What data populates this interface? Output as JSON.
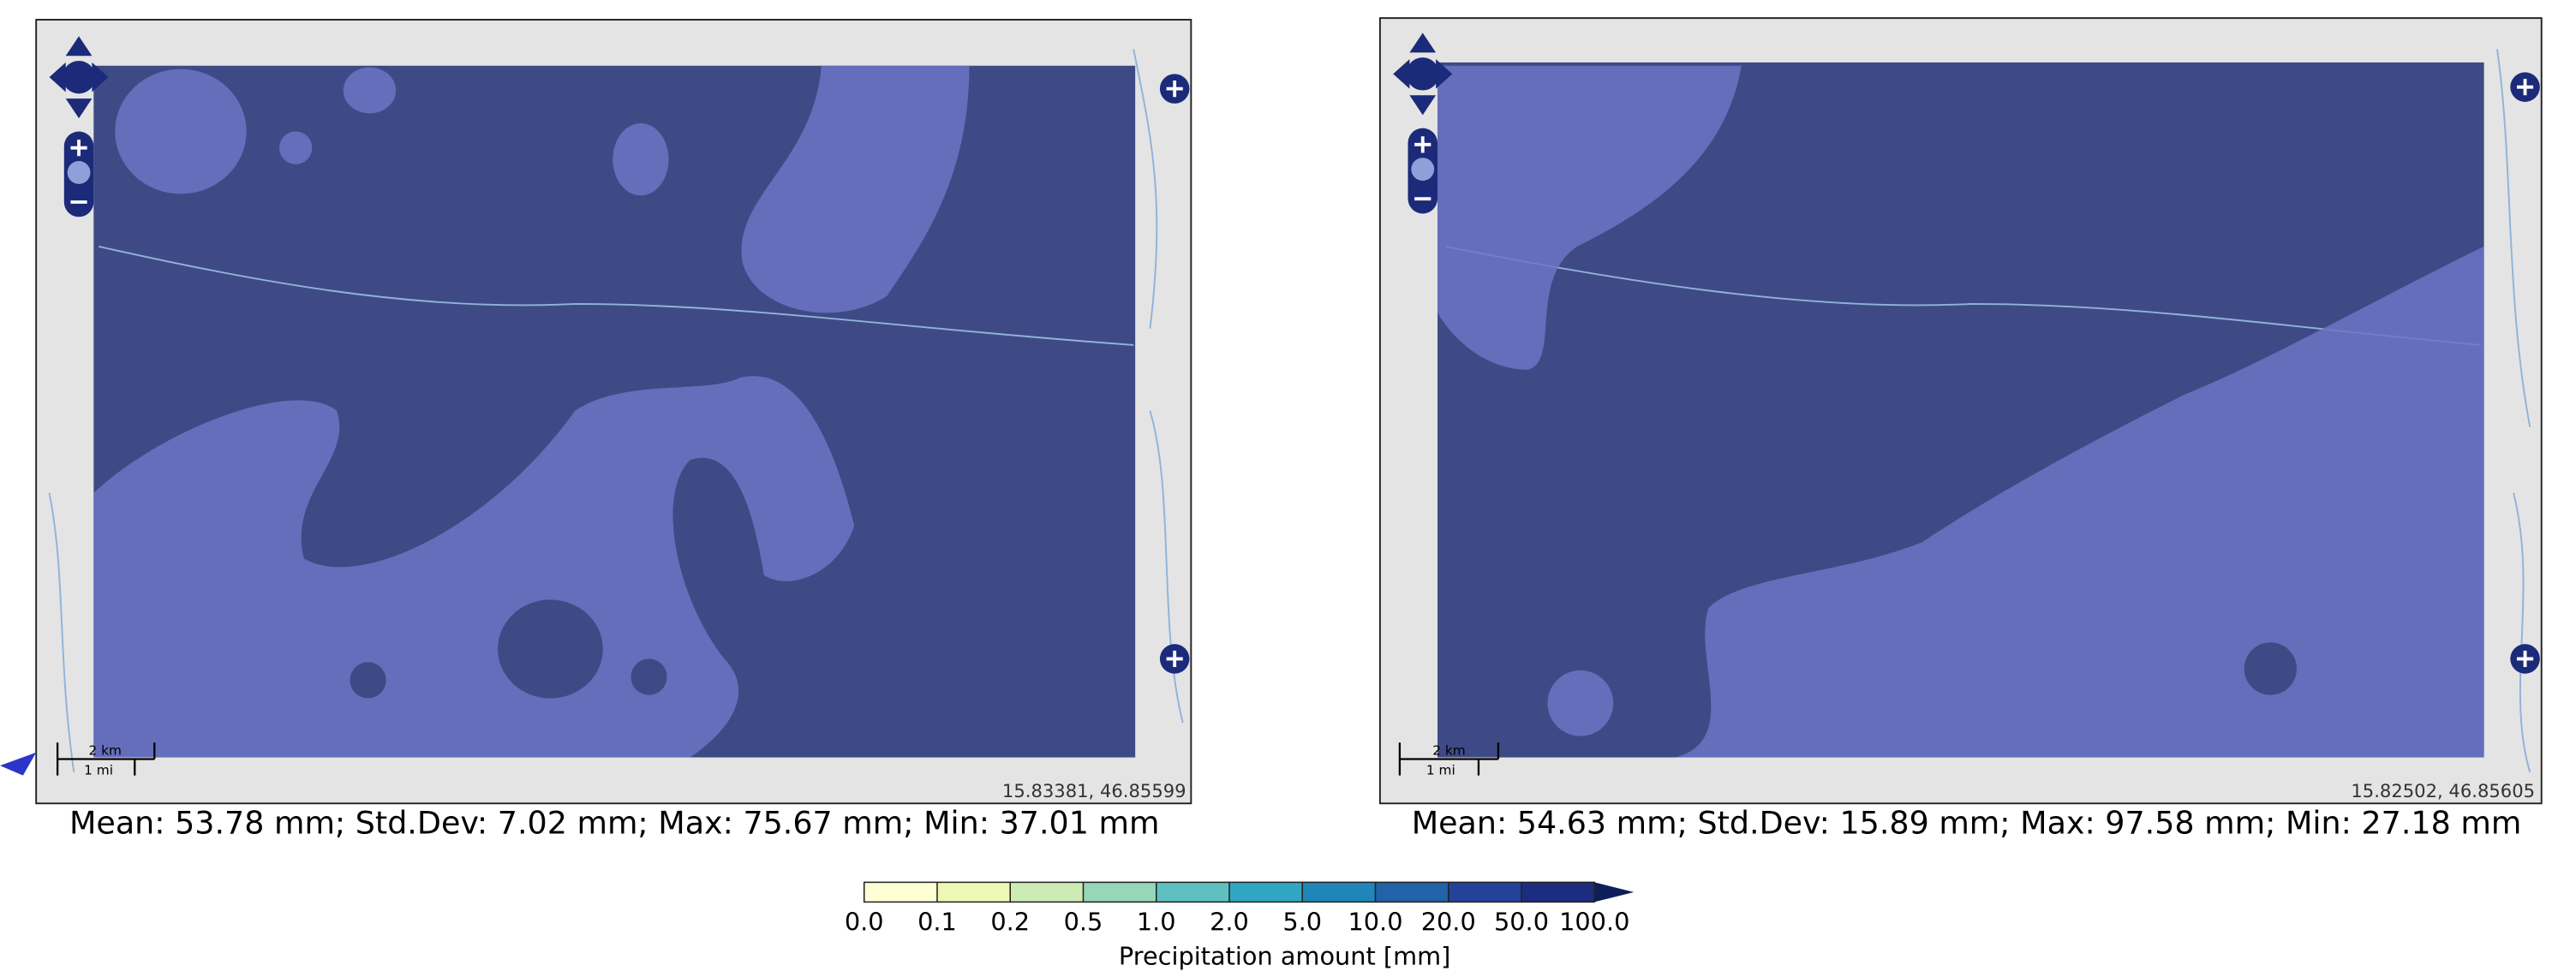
{
  "maps": [
    {
      "caption": "Mean: 53.78 mm; Std.Dev: 7.02 mm; Max: 75.67 mm; Min: 37.01 mm",
      "scale_km": "2 km",
      "scale_mi": "1 mi",
      "coordinates": "15.83381, 46.85599"
    },
    {
      "caption": "Mean: 54.63 mm; Std.Dev: 15.89 mm; Max: 97.58 mm; Min: 27.18 mm",
      "scale_km": "2 km",
      "scale_mi": "1 mi",
      "coordinates": "15.82502, 46.85605"
    }
  ],
  "colorbar": {
    "label": "Precipitation amount [mm]",
    "ticks": [
      {
        "value": 0,
        "label": "0.0"
      },
      {
        "value": 0.1,
        "label": "0.1"
      },
      {
        "value": 0.2,
        "label": "0.2"
      },
      {
        "value": 0.5,
        "label": "0.5"
      },
      {
        "value": 1,
        "label": "1.0"
      },
      {
        "value": 2,
        "label": "2.0"
      },
      {
        "value": 5,
        "label": "5.0"
      },
      {
        "value": 10,
        "label": "10.0"
      },
      {
        "value": 20,
        "label": "20.0"
      },
      {
        "value": 50,
        "label": "50.0"
      },
      {
        "value": 100,
        "label": "100.0"
      }
    ],
    "colors": [
      "#ffffd4",
      "#eef8b4",
      "#cdebb5",
      "#97d6b9",
      "#5ec1c0",
      "#31a6c2",
      "#1f86ba",
      "#2262a8",
      "#24429a",
      "#1c2c80",
      "#0e1e5a"
    ],
    "extend_color": "#0e1e5a"
  }
}
